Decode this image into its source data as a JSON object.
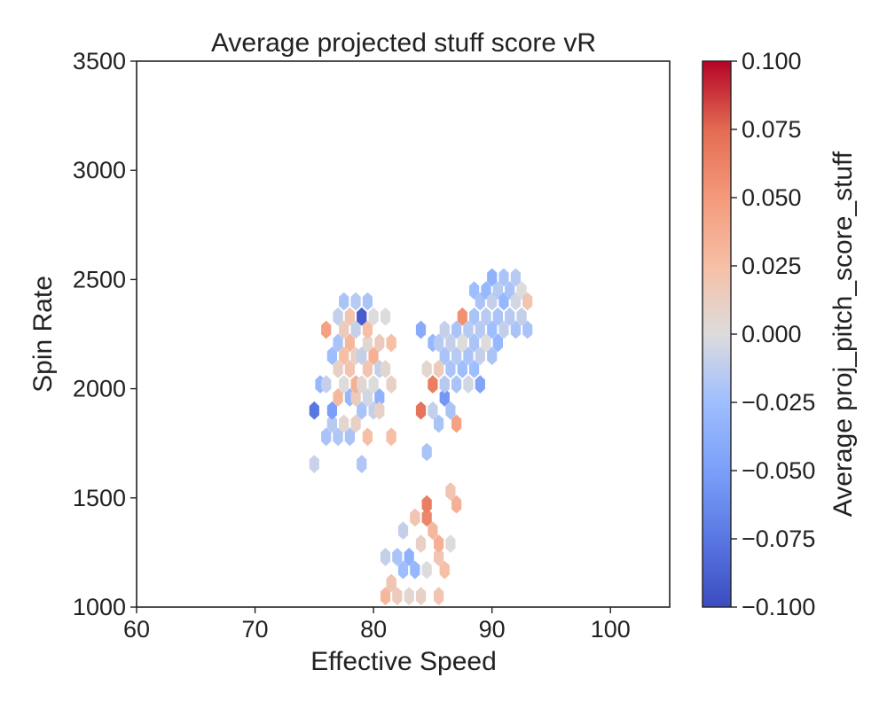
{
  "chart_data": {
    "type": "hexbin",
    "title": "Average projected stuff score vR",
    "xlabel": "Effective Speed",
    "ylabel": "Spin Rate",
    "xlim": [
      60,
      105
    ],
    "ylim": [
      1000,
      3500
    ],
    "xticks": [
      60,
      70,
      80,
      90,
      100
    ],
    "yticks": [
      1000,
      1500,
      2000,
      2500,
      3000,
      3500
    ],
    "colorbar": {
      "label": "Average proj_pitch_score_stuff",
      "colormap": "coolwarm",
      "range": [
        -0.1,
        0.1
      ],
      "ticks": [
        "0.100",
        "0.075",
        "0.050",
        "0.025",
        "0.000",
        "−0.025",
        "−0.050",
        "−0.075",
        "−0.100"
      ],
      "tick_values": [
        0.1,
        0.075,
        0.05,
        0.025,
        0.0,
        -0.025,
        -0.05,
        -0.075,
        -0.1
      ]
    },
    "grid": false,
    "points": [
      {
        "x": 75.0,
        "y": 1655,
        "v": -0.008
      },
      {
        "x": 75.0,
        "y": 1900,
        "v": -0.075
      },
      {
        "x": 75.5,
        "y": 2020,
        "v": -0.03
      },
      {
        "x": 76.0,
        "y": 1780,
        "v": -0.02
      },
      {
        "x": 76.0,
        "y": 2020,
        "v": -0.01
      },
      {
        "x": 76.0,
        "y": 2270,
        "v": 0.045
      },
      {
        "x": 76.5,
        "y": 1840,
        "v": -0.015
      },
      {
        "x": 76.5,
        "y": 2150,
        "v": -0.025
      },
      {
        "x": 76.5,
        "y": 1900,
        "v": -0.05
      },
      {
        "x": 77.0,
        "y": 1780,
        "v": -0.018
      },
      {
        "x": 77.0,
        "y": 1960,
        "v": 0.03
      },
      {
        "x": 77.0,
        "y": 2090,
        "v": 0.01
      },
      {
        "x": 77.0,
        "y": 2210,
        "v": -0.02
      },
      {
        "x": 77.0,
        "y": 2330,
        "v": -0.01
      },
      {
        "x": 77.5,
        "y": 1840,
        "v": 0.005
      },
      {
        "x": 77.5,
        "y": 2020,
        "v": 0.0
      },
      {
        "x": 77.5,
        "y": 2150,
        "v": 0.025
      },
      {
        "x": 77.5,
        "y": 2270,
        "v": 0.015
      },
      {
        "x": 77.5,
        "y": 2400,
        "v": -0.02
      },
      {
        "x": 78.0,
        "y": 1780,
        "v": -0.02
      },
      {
        "x": 78.0,
        "y": 1960,
        "v": -0.03
      },
      {
        "x": 78.0,
        "y": 2090,
        "v": 0.02
      },
      {
        "x": 78.0,
        "y": 2210,
        "v": 0.03
      },
      {
        "x": 78.0,
        "y": 2330,
        "v": 0.02
      },
      {
        "x": 78.5,
        "y": 1840,
        "v": 0.01
      },
      {
        "x": 78.5,
        "y": 1960,
        "v": 0.015
      },
      {
        "x": 78.5,
        "y": 2020,
        "v": 0.035
      },
      {
        "x": 78.5,
        "y": 2150,
        "v": 0.01
      },
      {
        "x": 78.5,
        "y": 2270,
        "v": -0.01
      },
      {
        "x": 78.5,
        "y": 2400,
        "v": -0.015
      },
      {
        "x": 79.0,
        "y": 1900,
        "v": -0.02
      },
      {
        "x": 79.0,
        "y": 2020,
        "v": 0.005
      },
      {
        "x": 79.0,
        "y": 2150,
        "v": -0.01
      },
      {
        "x": 79.0,
        "y": 2330,
        "v": -0.09
      },
      {
        "x": 79.0,
        "y": 1655,
        "v": -0.018
      },
      {
        "x": 79.5,
        "y": 1780,
        "v": 0.025
      },
      {
        "x": 79.5,
        "y": 1960,
        "v": -0.005
      },
      {
        "x": 79.5,
        "y": 2090,
        "v": 0.02
      },
      {
        "x": 79.5,
        "y": 2210,
        "v": 0.005
      },
      {
        "x": 79.5,
        "y": 2270,
        "v": 0.025
      },
      {
        "x": 79.5,
        "y": 2400,
        "v": -0.02
      },
      {
        "x": 80.0,
        "y": 1900,
        "v": -0.01
      },
      {
        "x": 80.0,
        "y": 2020,
        "v": 0.0
      },
      {
        "x": 80.0,
        "y": 2150,
        "v": 0.035
      },
      {
        "x": 80.0,
        "y": 2330,
        "v": 0.0
      },
      {
        "x": 80.5,
        "y": 1960,
        "v": -0.035
      },
      {
        "x": 80.5,
        "y": 2090,
        "v": -0.01
      },
      {
        "x": 80.5,
        "y": 2210,
        "v": 0.015
      },
      {
        "x": 80.5,
        "y": 1900,
        "v": 0.01
      },
      {
        "x": 81.0,
        "y": 2090,
        "v": 0.005
      },
      {
        "x": 81.0,
        "y": 2330,
        "v": 0.0
      },
      {
        "x": 81.5,
        "y": 2020,
        "v": 0.01
      },
      {
        "x": 81.5,
        "y": 2210,
        "v": 0.025
      },
      {
        "x": 81.5,
        "y": 1780,
        "v": 0.025
      },
      {
        "x": 84.0,
        "y": 1900,
        "v": 0.07
      },
      {
        "x": 84.0,
        "y": 2270,
        "v": -0.04
      },
      {
        "x": 84.5,
        "y": 2090,
        "v": 0.005
      },
      {
        "x": 84.5,
        "y": 1710,
        "v": -0.02
      },
      {
        "x": 85.0,
        "y": 2020,
        "v": 0.065
      },
      {
        "x": 85.0,
        "y": 1900,
        "v": -0.01
      },
      {
        "x": 85.0,
        "y": 2210,
        "v": -0.03
      },
      {
        "x": 85.5,
        "y": 1840,
        "v": -0.02
      },
      {
        "x": 85.5,
        "y": 2090,
        "v": 0.015
      },
      {
        "x": 85.5,
        "y": 2210,
        "v": -0.015
      },
      {
        "x": 86.0,
        "y": 1960,
        "v": -0.055
      },
      {
        "x": 86.0,
        "y": 2020,
        "v": -0.015
      },
      {
        "x": 86.0,
        "y": 2150,
        "v": -0.02
      },
      {
        "x": 86.0,
        "y": 2270,
        "v": -0.01
      },
      {
        "x": 86.5,
        "y": 1900,
        "v": -0.02
      },
      {
        "x": 86.5,
        "y": 2090,
        "v": -0.02
      },
      {
        "x": 86.5,
        "y": 2210,
        "v": -0.01
      },
      {
        "x": 87.0,
        "y": 1840,
        "v": 0.045
      },
      {
        "x": 87.0,
        "y": 2020,
        "v": -0.02
      },
      {
        "x": 87.0,
        "y": 2150,
        "v": -0.015
      },
      {
        "x": 87.0,
        "y": 2270,
        "v": -0.02
      },
      {
        "x": 87.5,
        "y": 2090,
        "v": -0.025
      },
      {
        "x": 87.5,
        "y": 2210,
        "v": 0.0
      },
      {
        "x": 87.5,
        "y": 2330,
        "v": 0.055
      },
      {
        "x": 88.0,
        "y": 2150,
        "v": -0.02
      },
      {
        "x": 88.0,
        "y": 2270,
        "v": -0.015
      },
      {
        "x": 88.0,
        "y": 2020,
        "v": -0.005
      },
      {
        "x": 88.5,
        "y": 2090,
        "v": -0.025
      },
      {
        "x": 88.5,
        "y": 2210,
        "v": -0.02
      },
      {
        "x": 88.5,
        "y": 2330,
        "v": -0.02
      },
      {
        "x": 88.5,
        "y": 2450,
        "v": -0.025
      },
      {
        "x": 89.0,
        "y": 2020,
        "v": -0.045
      },
      {
        "x": 89.0,
        "y": 2150,
        "v": -0.01
      },
      {
        "x": 89.0,
        "y": 2270,
        "v": -0.015
      },
      {
        "x": 89.0,
        "y": 2400,
        "v": -0.02
      },
      {
        "x": 89.5,
        "y": 2210,
        "v": 0.0
      },
      {
        "x": 89.5,
        "y": 2330,
        "v": -0.015
      },
      {
        "x": 89.5,
        "y": 2450,
        "v": -0.03
      },
      {
        "x": 90.0,
        "y": 2150,
        "v": -0.02
      },
      {
        "x": 90.0,
        "y": 2270,
        "v": -0.025
      },
      {
        "x": 90.0,
        "y": 2400,
        "v": -0.01
      },
      {
        "x": 90.0,
        "y": 2510,
        "v": -0.035
      },
      {
        "x": 90.5,
        "y": 2210,
        "v": -0.03
      },
      {
        "x": 90.5,
        "y": 2330,
        "v": -0.02
      },
      {
        "x": 90.5,
        "y": 2450,
        "v": -0.015
      },
      {
        "x": 91.0,
        "y": 2270,
        "v": -0.01
      },
      {
        "x": 91.0,
        "y": 2400,
        "v": -0.03
      },
      {
        "x": 91.0,
        "y": 2510,
        "v": -0.02
      },
      {
        "x": 91.5,
        "y": 2330,
        "v": -0.015
      },
      {
        "x": 91.5,
        "y": 2450,
        "v": -0.02
      },
      {
        "x": 92.0,
        "y": 2270,
        "v": -0.02
      },
      {
        "x": 92.0,
        "y": 2400,
        "v": -0.005
      },
      {
        "x": 92.0,
        "y": 2510,
        "v": -0.015
      },
      {
        "x": 92.5,
        "y": 2330,
        "v": -0.01
      },
      {
        "x": 92.5,
        "y": 2450,
        "v": 0.0
      },
      {
        "x": 93.0,
        "y": 2400,
        "v": 0.02
      },
      {
        "x": 93.0,
        "y": 2270,
        "v": -0.02
      },
      {
        "x": 82.0,
        "y": 1050,
        "v": 0.015
      },
      {
        "x": 81.5,
        "y": 1110,
        "v": 0.02
      },
      {
        "x": 81.0,
        "y": 1230,
        "v": -0.01
      },
      {
        "x": 81.0,
        "y": 1050,
        "v": 0.03
      },
      {
        "x": 82.0,
        "y": 1230,
        "v": -0.02
      },
      {
        "x": 82.5,
        "y": 1170,
        "v": -0.025
      },
      {
        "x": 82.5,
        "y": 1350,
        "v": -0.01
      },
      {
        "x": 83.0,
        "y": 1230,
        "v": -0.035
      },
      {
        "x": 83.0,
        "y": 1050,
        "v": 0.005
      },
      {
        "x": 83.5,
        "y": 1170,
        "v": -0.03
      },
      {
        "x": 83.5,
        "y": 1410,
        "v": 0.02
      },
      {
        "x": 84.0,
        "y": 1050,
        "v": 0.01
      },
      {
        "x": 84.0,
        "y": 1290,
        "v": 0.01
      },
      {
        "x": 84.5,
        "y": 1410,
        "v": 0.06
      },
      {
        "x": 84.5,
        "y": 1470,
        "v": 0.065
      },
      {
        "x": 84.5,
        "y": 1170,
        "v": 0.0
      },
      {
        "x": 85.0,
        "y": 1350,
        "v": 0.03
      },
      {
        "x": 85.5,
        "y": 1230,
        "v": 0.02
      },
      {
        "x": 85.5,
        "y": 1290,
        "v": 0.035
      },
      {
        "x": 85.5,
        "y": 1050,
        "v": 0.02
      },
      {
        "x": 86.0,
        "y": 1170,
        "v": 0.025
      },
      {
        "x": 86.5,
        "y": 1290,
        "v": 0.0
      },
      {
        "x": 86.5,
        "y": 1530,
        "v": 0.02
      },
      {
        "x": 87.0,
        "y": 1470,
        "v": 0.035
      }
    ]
  }
}
